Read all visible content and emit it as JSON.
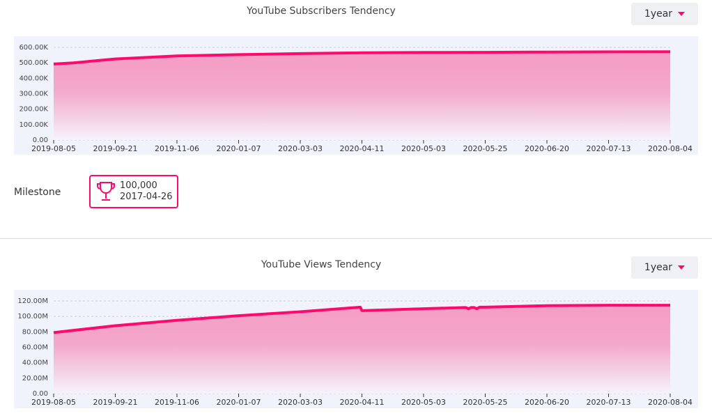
{
  "colors": {
    "accent": "#ff0a6c",
    "plot_bg": "#f0f3fb"
  },
  "chart_data": [
    {
      "type": "area",
      "title": "YouTube Subscribers Tendency",
      "range_selector": "1year",
      "x_ticks": [
        "2019-08-05",
        "2019-09-21",
        "2019-11-06",
        "2020-01-07",
        "2020-03-03",
        "2020-04-11",
        "2020-05-03",
        "2020-05-25",
        "2020-06-20",
        "2020-07-13",
        "2020-08-04"
      ],
      "y_ticks": [
        "0.00",
        "100.00K",
        "200.00K",
        "300.00K",
        "400.00K",
        "500.00K",
        "600.00K"
      ],
      "ylim": [
        0,
        600000
      ],
      "grid": true,
      "series": [
        {
          "points": [
            [
              "2019-08-05",
              492000
            ],
            [
              "2019-08-20",
              500000
            ],
            [
              "2019-09-21",
              525000
            ],
            [
              "2019-11-06",
              545000
            ],
            [
              "2020-01-07",
              553000
            ],
            [
              "2020-03-03",
              560000
            ],
            [
              "2020-04-11",
              565000
            ],
            [
              "2020-05-03",
              567000
            ],
            [
              "2020-05-25",
              568000
            ],
            [
              "2020-06-20",
              570000
            ],
            [
              "2020-07-13",
              571000
            ],
            [
              "2020-08-04",
              572000
            ]
          ]
        }
      ]
    },
    {
      "type": "area",
      "title": "YouTube Views Tendency",
      "range_selector": "1year",
      "x_ticks": [
        "2019-08-05",
        "2019-09-21",
        "2019-11-06",
        "2020-01-07",
        "2020-03-03",
        "2020-04-11",
        "2020-05-03",
        "2020-05-25",
        "2020-06-20",
        "2020-07-13",
        "2020-08-04"
      ],
      "y_ticks": [
        "0.00",
        "20.00M",
        "40.00M",
        "60.00M",
        "80.00M",
        "100.00M",
        "120.00M"
      ],
      "ylim": [
        0,
        120000000
      ],
      "grid": true,
      "series": [
        {
          "points": [
            [
              "2019-08-05",
              79000000
            ],
            [
              "2019-09-21",
              88000000
            ],
            [
              "2019-11-06",
              95000000
            ],
            [
              "2020-01-07",
              101000000
            ],
            [
              "2020-03-03",
              106000000
            ],
            [
              "2020-04-10",
              112000000
            ],
            [
              "2020-04-11",
              107500000
            ],
            [
              "2020-05-03",
              110000000
            ],
            [
              "2020-05-18",
              111500000
            ],
            [
              "2020-05-19",
              110000000
            ],
            [
              "2020-05-20",
              111500000
            ],
            [
              "2020-05-21",
              111500000
            ],
            [
              "2020-05-22",
              110000000
            ],
            [
              "2020-05-23",
              112000000
            ],
            [
              "2020-05-25",
              112000000
            ],
            [
              "2020-06-20",
              114000000
            ],
            [
              "2020-07-13",
              114500000
            ],
            [
              "2020-08-04",
              114500000
            ]
          ]
        }
      ]
    }
  ],
  "milestone": {
    "label": "Milestone",
    "value": "100,000",
    "date": "2017-04-26"
  }
}
